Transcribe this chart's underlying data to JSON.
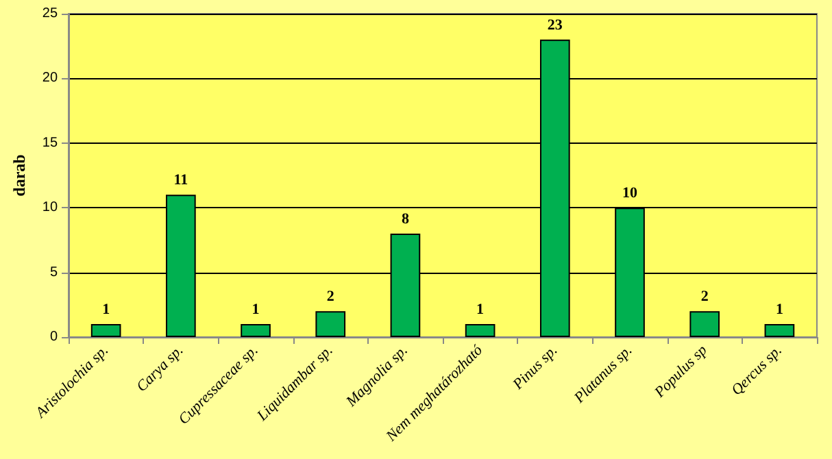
{
  "chart_data": {
    "type": "bar",
    "ylabel": "darab",
    "categories": [
      "Aristolochia sp.",
      "Carya sp.",
      "Cupressaceae sp.",
      "Liquidambar sp.",
      "Magnolia sp.",
      "Nem meghatározható",
      "Pinus sp.",
      "Platanus sp.",
      "Populus sp",
      "Qercus sp."
    ],
    "values": [
      1,
      11,
      1,
      2,
      8,
      1,
      23,
      10,
      2,
      1
    ],
    "color": "#00b050",
    "ylim": [
      0,
      25
    ],
    "yticks": [
      0,
      5,
      10,
      15,
      20,
      25
    ],
    "grid": "y",
    "data_labels": true
  }
}
